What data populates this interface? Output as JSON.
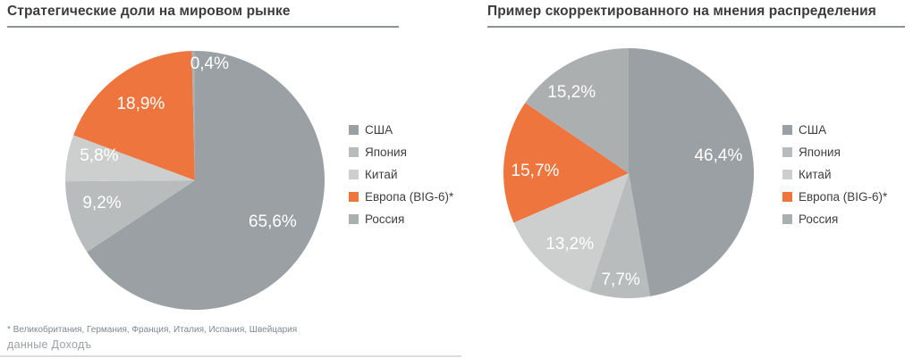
{
  "chart_data": [
    {
      "type": "pie",
      "title": "Стратегические доли на мировом рынке",
      "categories": [
        "США",
        "Япония",
        "Китай",
        "Европа (BIG-6)*",
        "Россия"
      ],
      "values": [
        65.6,
        9.2,
        5.8,
        18.9,
        0.4
      ],
      "labels": [
        "65,6%",
        "9,2%",
        "5,8%",
        "18,9%",
        "0,4%"
      ],
      "colors": [
        "#9AA0A3",
        "#B9BCBD",
        "#CDCFCF",
        "#EF753E",
        "#ACAFB0"
      ],
      "start_angle_deg": 0,
      "direction": "clockwise",
      "legend_position": "right",
      "label_r": [
        0.68,
        0.75,
        0.75,
        0.72,
        0.9
      ],
      "label_dx": [
        0,
        0,
        0,
        0,
        18
      ],
      "label_dy": [
        0,
        -6,
        -8,
        0,
        0
      ]
    },
    {
      "type": "pie",
      "title": "Пример скорректированного на мнения распределения",
      "categories": [
        "США",
        "Япония",
        "Китай",
        "Европа (BIG-6)*",
        "Россия"
      ],
      "values": [
        46.4,
        7.7,
        13.2,
        15.7,
        15.2
      ],
      "labels": [
        "46,4%",
        "7,7%",
        "13,2%",
        "15,7%",
        "15,2%"
      ],
      "colors": [
        "#9AA0A3",
        "#B9BCBD",
        "#CDCFCF",
        "#EF753E",
        "#ACAFB0"
      ],
      "start_angle_deg": 0,
      "direction": "clockwise",
      "legend_position": "right",
      "label_r": [
        0.72,
        0.86,
        0.78,
        0.75,
        0.73
      ],
      "label_dx": [
        0,
        0,
        8,
        0,
        -16
      ],
      "label_dy": [
        -10,
        0,
        0,
        8,
        0
      ]
    }
  ],
  "footnote": "* Великобритания, Германия, Франция, Италия, Испания, Швейцария",
  "source": "данные Доходъ"
}
